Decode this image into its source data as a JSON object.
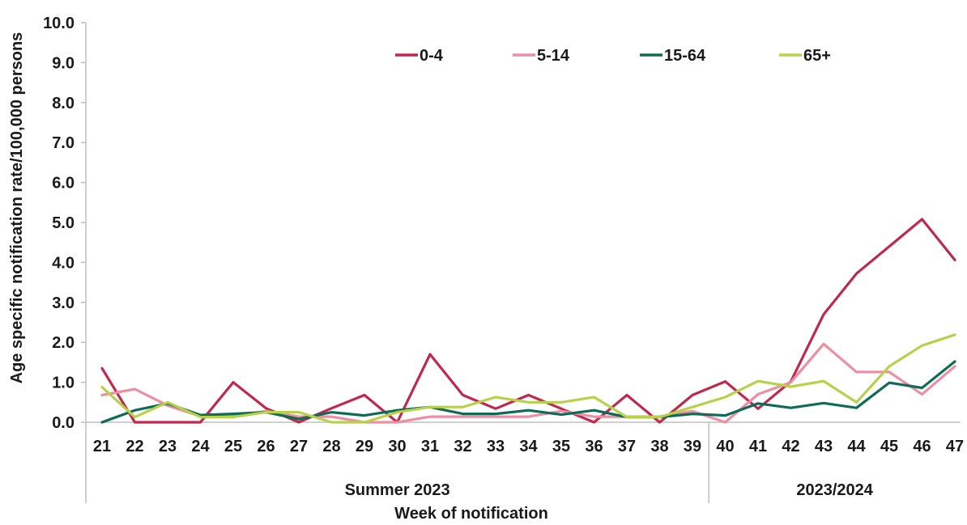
{
  "chart_data": {
    "type": "line",
    "x": [
      "21",
      "22",
      "23",
      "24",
      "25",
      "26",
      "27",
      "28",
      "29",
      "30",
      "31",
      "32",
      "33",
      "34",
      "35",
      "36",
      "37",
      "38",
      "39",
      "40",
      "41",
      "42",
      "43",
      "44",
      "45",
      "46",
      "47"
    ],
    "groups": [
      {
        "label": "Summer 2023",
        "weeks": [
          "21",
          "39"
        ]
      },
      {
        "label": "2023/2024",
        "weeks": [
          "40",
          "47"
        ]
      }
    ],
    "xlabel": "Week of notification",
    "ylabel": "Age  specific notification  rate/100,000 persons",
    "ylim": [
      0,
      10
    ],
    "yticks": [
      "0.0",
      "1.0",
      "2.0",
      "3.0",
      "4.0",
      "5.0",
      "6.0",
      "7.0",
      "8.0",
      "9.0",
      "10.0"
    ],
    "grid": false,
    "legend_position": "top",
    "series": [
      {
        "name": "0-4",
        "color": "#c0294f",
        "values": [
          1.35,
          0.0,
          0.0,
          0.0,
          1.0,
          0.35,
          0.0,
          0.35,
          0.68,
          0.0,
          1.7,
          0.68,
          0.34,
          0.68,
          0.34,
          0.0,
          0.68,
          0.0,
          0.68,
          1.02,
          0.34,
          1.02,
          2.7,
          3.72,
          4.4,
          5.08,
          4.06
        ]
      },
      {
        "name": "5-14",
        "color": "#ec8fa3",
        "values": [
          0.68,
          0.83,
          0.42,
          0.15,
          0.15,
          0.28,
          0.14,
          0.14,
          0.0,
          0.0,
          0.14,
          0.14,
          0.14,
          0.14,
          0.28,
          0.14,
          0.14,
          0.14,
          0.28,
          0.0,
          0.7,
          1.0,
          1.96,
          1.26,
          1.26,
          0.7,
          1.4
        ]
      },
      {
        "name": "15-64",
        "color": "#0f6b55",
        "values": [
          0.0,
          0.3,
          0.47,
          0.18,
          0.21,
          0.25,
          0.08,
          0.25,
          0.17,
          0.3,
          0.38,
          0.21,
          0.21,
          0.3,
          0.19,
          0.3,
          0.13,
          0.13,
          0.21,
          0.17,
          0.47,
          0.36,
          0.48,
          0.36,
          0.99,
          0.86,
          1.52
        ]
      },
      {
        "name": "65+",
        "color": "#b8d14a",
        "values": [
          0.88,
          0.13,
          0.5,
          0.13,
          0.13,
          0.25,
          0.25,
          0.0,
          0.0,
          0.25,
          0.38,
          0.38,
          0.63,
          0.5,
          0.5,
          0.63,
          0.13,
          0.13,
          0.38,
          0.63,
          1.03,
          0.89,
          1.03,
          0.5,
          1.4,
          1.92,
          2.19
        ]
      }
    ]
  }
}
